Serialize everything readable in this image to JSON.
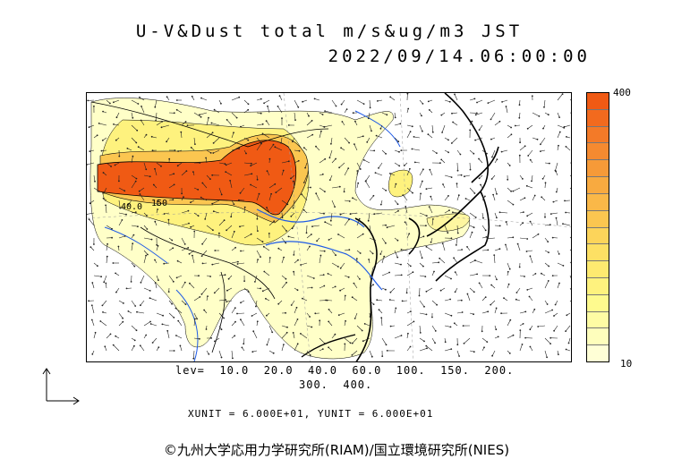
{
  "title": {
    "line1": "U-V&Dust total m/s&ug/m3 JST",
    "line2": "2022/09/14.06:00:00"
  },
  "colorbar": {
    "max_label": "400",
    "min_label": "10",
    "colors": [
      "#f05a14",
      "#f26a1e",
      "#f37a28",
      "#f58a30",
      "#f69a38",
      "#f8aa40",
      "#fab848",
      "#fbc650",
      "#fcd45a",
      "#fde064",
      "#feea70",
      "#fef27e",
      "#fefa8e",
      "#fefca4",
      "#fefebc",
      "#ffffd6"
    ]
  },
  "legend": {
    "levels_line1": "lev=  10.0  20.0  40.0  60.0  100.  150.  200.",
    "levels_line2": "300.  400.",
    "units_line": "XUNIT = 6.000E+01, YUNIT = 6.000E+01"
  },
  "map_labels": {
    "contour_label_a": "40.0",
    "contour_label_b": "150"
  },
  "credit": "©九州大学応用力学研究所(RIAM)/国立環境研究所(NIES)",
  "colors": {
    "high": "#f05a14",
    "mid": "#fde064",
    "low": "#ffffc8",
    "rivers": "#1e5ae6",
    "coast": "#000000"
  }
}
